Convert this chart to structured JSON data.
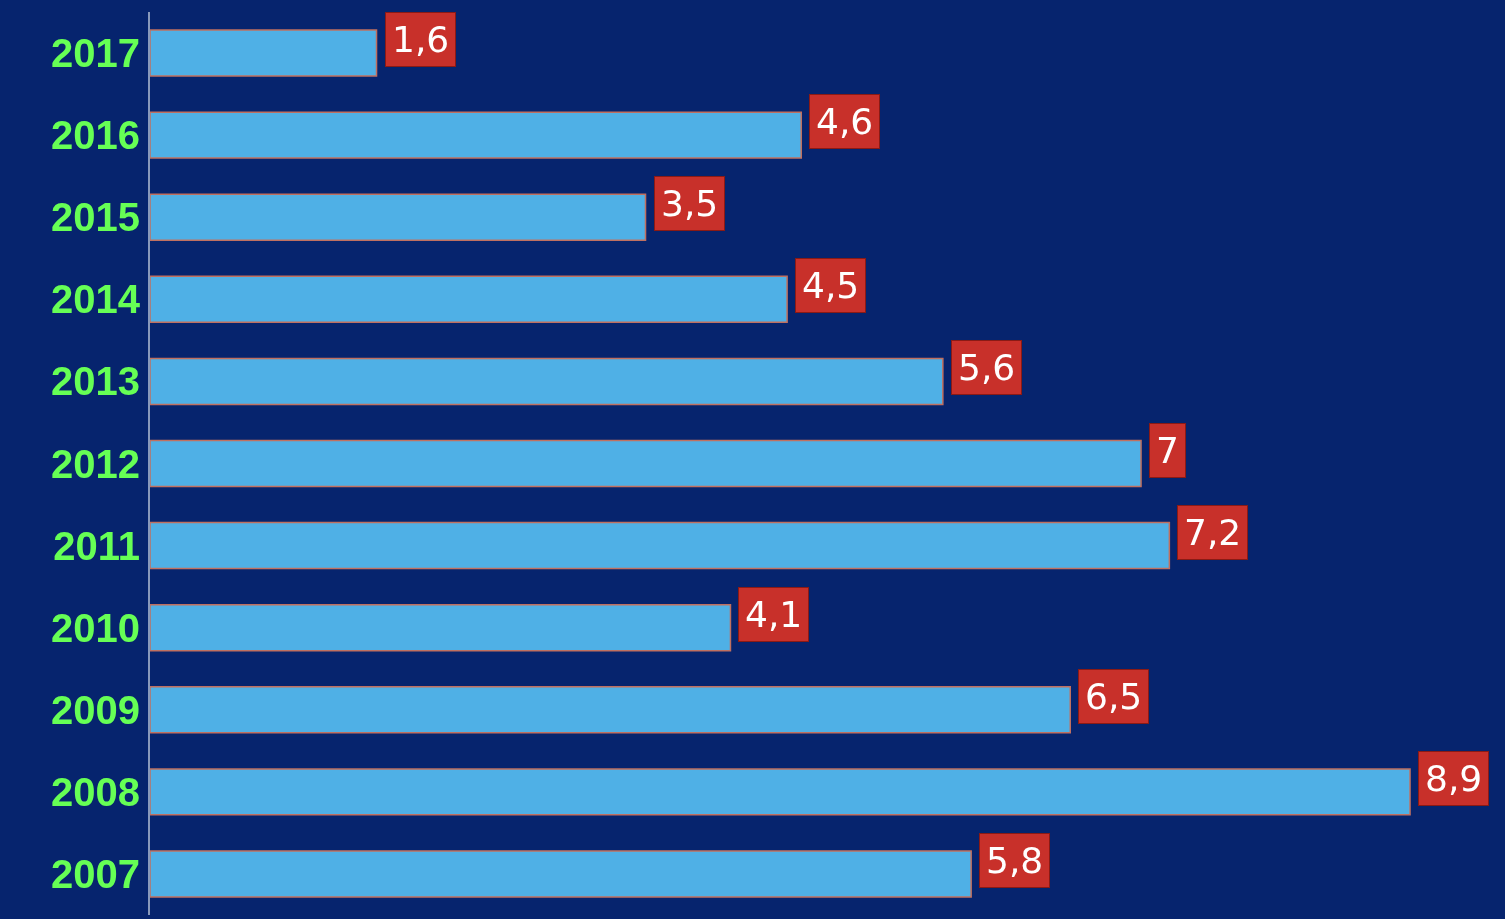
{
  "chart_data": {
    "type": "bar",
    "orientation": "horizontal",
    "categories": [
      "2017",
      "2016",
      "2015",
      "2014",
      "2013",
      "2012",
      "2011",
      "2010",
      "2009",
      "2008",
      "2007"
    ],
    "values": [
      1.6,
      4.6,
      3.5,
      4.5,
      5.6,
      7,
      7.2,
      4.1,
      6.5,
      8.9,
      5.8
    ],
    "value_labels": [
      "1,6",
      "4,6",
      "3,5",
      "4,5",
      "5,6",
      "7",
      "7,2",
      "4,1",
      "6,5",
      "8,9",
      "5,8"
    ],
    "color": "#4fb0e6",
    "xlim": [
      0,
      9.5
    ],
    "tick_labels": "y"
  }
}
